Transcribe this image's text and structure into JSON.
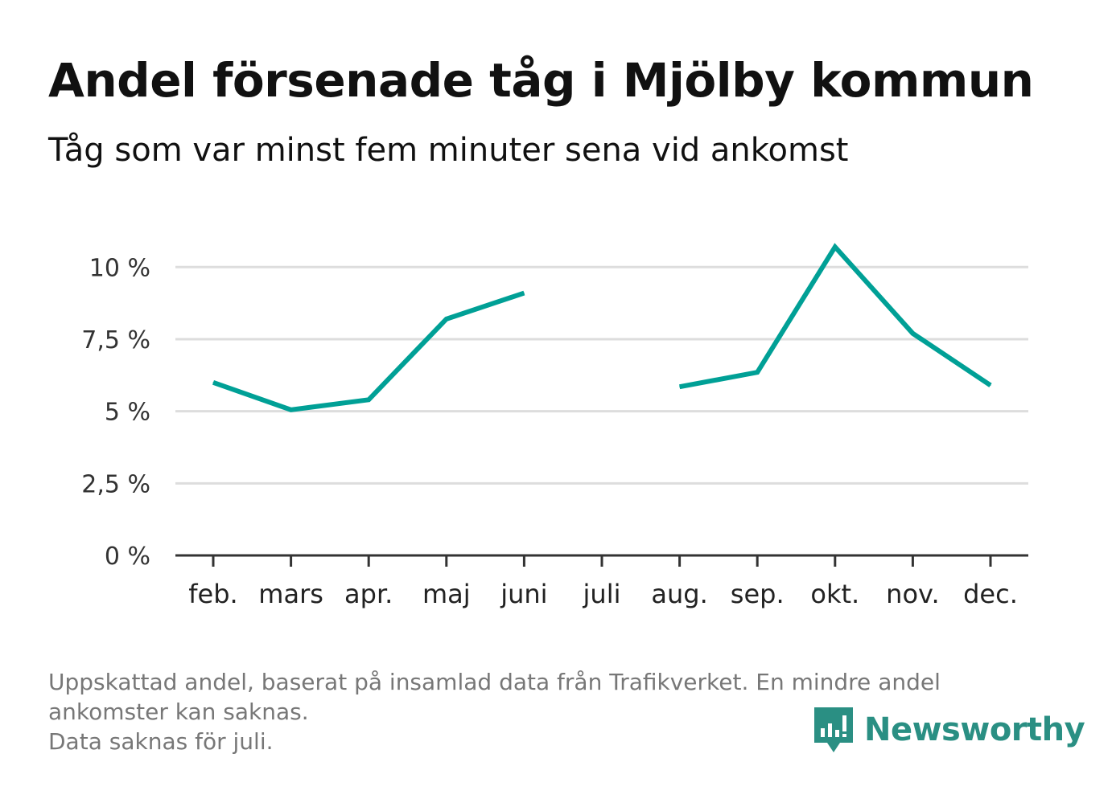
{
  "title": "Andel försenade tåg i Mjölby kommun",
  "subtitle": "Tåg som var minst fem minuter sena vid ankomst",
  "footnote": {
    "line1": "Uppskattad andel, baserat på insamlad data från Trafikverket. En mindre andel",
    "line2": "ankomster kan saknas.",
    "line3": "Data saknas för juli."
  },
  "brand": {
    "name": "Newsworthy",
    "color": "#2a8f83",
    "icon": "newsworthy-logo-icon"
  },
  "chart_data": {
    "type": "line",
    "categories": [
      "feb.",
      "mars",
      "apr.",
      "maj",
      "juni",
      "juli",
      "aug.",
      "sep.",
      "okt.",
      "nov.",
      "dec."
    ],
    "series": [
      {
        "values": [
          6.0,
          5.05,
          5.4,
          8.2,
          9.1,
          null,
          5.85,
          6.35,
          10.7,
          7.7,
          5.9
        ]
      }
    ],
    "yticks": [
      0,
      2.5,
      5,
      7.5,
      10
    ],
    "ytick_labels": [
      "0 %",
      "2,5 %",
      "5 %",
      "7,5 %",
      "10 %"
    ],
    "ylim": [
      0,
      10.9
    ],
    "grid": true,
    "line_color": "#00a096",
    "grid_color": "#dddddd",
    "axis_color": "#333333"
  }
}
